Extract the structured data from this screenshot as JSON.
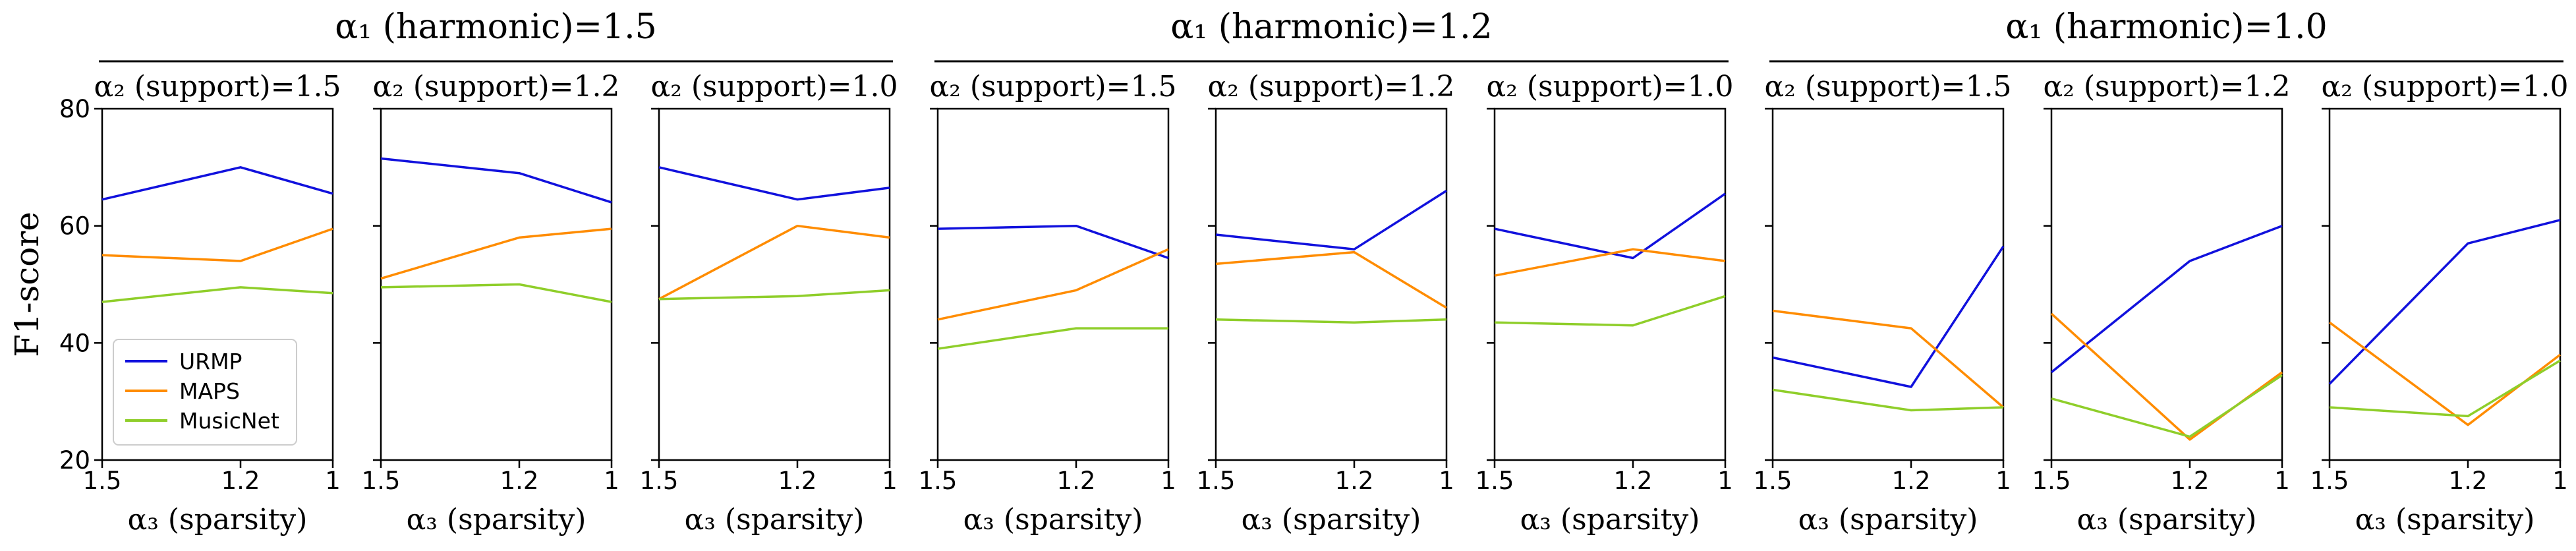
{
  "ylabel": "F1-score",
  "ylim": [
    20,
    80
  ],
  "yticks": [
    "20",
    "40",
    "60",
    "80"
  ],
  "xtick_labels": [
    "1.5",
    "1.2",
    "1"
  ],
  "x_values": [
    1.5,
    1.2,
    1.0
  ],
  "xlabel": "α₃ (sparsity)",
  "colors": {
    "URMP": "#1111dd",
    "MAPS": "#ff8c00",
    "MusicNet": "#8fce2a",
    "axis": "#000000"
  },
  "legend": [
    {
      "name": "URMP",
      "color": "#1111dd"
    },
    {
      "name": "MAPS",
      "color": "#ff8c00"
    },
    {
      "name": "MusicNet",
      "color": "#8fce2a"
    }
  ],
  "groups": [
    {
      "title": "α₁ (harmonic)=1.5"
    },
    {
      "title": "α₁ (harmonic)=1.2"
    },
    {
      "title": "α₁ (harmonic)=1.0"
    }
  ],
  "chart_data": [
    {
      "type": "line",
      "group_title": "α₁ (harmonic)=1.5",
      "title": "α₂ (support)=1.5",
      "xlabel": "α₃ (sparsity)",
      "ylabel": "F1-score",
      "ylim": [
        20,
        80
      ],
      "x": [
        1.5,
        1.2,
        1.0
      ],
      "series": [
        {
          "name": "URMP",
          "values": [
            64.5,
            70,
            65.5
          ]
        },
        {
          "name": "MAPS",
          "values": [
            55,
            54,
            59.5
          ]
        },
        {
          "name": "MusicNet",
          "values": [
            47,
            49.5,
            48.5
          ]
        }
      ]
    },
    {
      "type": "line",
      "group_title": "α₁ (harmonic)=1.5",
      "title": "α₂ (support)=1.2",
      "xlabel": "α₃ (sparsity)",
      "ylabel": "F1-score",
      "ylim": [
        20,
        80
      ],
      "x": [
        1.5,
        1.2,
        1.0
      ],
      "series": [
        {
          "name": "URMP",
          "values": [
            71.5,
            69,
            64
          ]
        },
        {
          "name": "MAPS",
          "values": [
            51,
            58,
            59.5
          ]
        },
        {
          "name": "MusicNet",
          "values": [
            49.5,
            50,
            47
          ]
        }
      ]
    },
    {
      "type": "line",
      "group_title": "α₁ (harmonic)=1.5",
      "title": "α₂ (support)=1.0",
      "xlabel": "α₃ (sparsity)",
      "ylabel": "F1-score",
      "ylim": [
        20,
        80
      ],
      "x": [
        1.5,
        1.2,
        1.0
      ],
      "series": [
        {
          "name": "URMP",
          "values": [
            70,
            64.5,
            66.5
          ]
        },
        {
          "name": "MAPS",
          "values": [
            47.5,
            60,
            58
          ]
        },
        {
          "name": "MusicNet",
          "values": [
            47.5,
            48,
            49
          ]
        }
      ]
    },
    {
      "type": "line",
      "group_title": "α₁ (harmonic)=1.2",
      "title": "α₂ (support)=1.5",
      "xlabel": "α₃ (sparsity)",
      "ylabel": "F1-score",
      "ylim": [
        20,
        80
      ],
      "x": [
        1.5,
        1.2,
        1.0
      ],
      "series": [
        {
          "name": "URMP",
          "values": [
            59.5,
            60,
            54.5
          ]
        },
        {
          "name": "MAPS",
          "values": [
            44,
            49,
            56
          ]
        },
        {
          "name": "MusicNet",
          "values": [
            39,
            42.5,
            42.5
          ]
        }
      ]
    },
    {
      "type": "line",
      "group_title": "α₁ (harmonic)=1.2",
      "title": "α₂ (support)=1.2",
      "xlabel": "α₃ (sparsity)",
      "ylabel": "F1-score",
      "ylim": [
        20,
        80
      ],
      "x": [
        1.5,
        1.2,
        1.0
      ],
      "series": [
        {
          "name": "URMP",
          "values": [
            58.5,
            56,
            66
          ]
        },
        {
          "name": "MAPS",
          "values": [
            53.5,
            55.5,
            46
          ]
        },
        {
          "name": "MusicNet",
          "values": [
            44,
            43.5,
            44
          ]
        }
      ]
    },
    {
      "type": "line",
      "group_title": "α₁ (harmonic)=1.2",
      "title": "α₂ (support)=1.0",
      "xlabel": "α₃ (sparsity)",
      "ylabel": "F1-score",
      "ylim": [
        20,
        80
      ],
      "x": [
        1.5,
        1.2,
        1.0
      ],
      "series": [
        {
          "name": "URMP",
          "values": [
            59.5,
            54.5,
            65.5
          ]
        },
        {
          "name": "MAPS",
          "values": [
            51.5,
            56,
            54
          ]
        },
        {
          "name": "MusicNet",
          "values": [
            43.5,
            43,
            48
          ]
        }
      ]
    },
    {
      "type": "line",
      "group_title": "α₁ (harmonic)=1.0",
      "title": "α₂ (support)=1.5",
      "xlabel": "α₃ (sparsity)",
      "ylabel": "F1-score",
      "ylim": [
        20,
        80
      ],
      "x": [
        1.5,
        1.2,
        1.0
      ],
      "series": [
        {
          "name": "URMP",
          "values": [
            37.5,
            32.5,
            56.5
          ]
        },
        {
          "name": "MAPS",
          "values": [
            45.5,
            42.5,
            29
          ]
        },
        {
          "name": "MusicNet",
          "values": [
            32,
            28.5,
            29
          ]
        }
      ]
    },
    {
      "type": "line",
      "group_title": "α₁ (harmonic)=1.0",
      "title": "α₂ (support)=1.2",
      "xlabel": "α₃ (sparsity)",
      "ylabel": "F1-score",
      "ylim": [
        20,
        80
      ],
      "x": [
        1.5,
        1.2,
        1.0
      ],
      "series": [
        {
          "name": "URMP",
          "values": [
            35,
            54,
            60
          ]
        },
        {
          "name": "MAPS",
          "values": [
            45,
            23.5,
            35
          ]
        },
        {
          "name": "MusicNet",
          "values": [
            30.5,
            24,
            34.5
          ]
        }
      ]
    },
    {
      "type": "line",
      "group_title": "α₁ (harmonic)=1.0",
      "title": "α₂ (support)=1.0",
      "xlabel": "α₃ (sparsity)",
      "ylabel": "F1-score",
      "ylim": [
        20,
        80
      ],
      "x": [
        1.5,
        1.2,
        1.0
      ],
      "series": [
        {
          "name": "URMP",
          "values": [
            33,
            57,
            61
          ]
        },
        {
          "name": "MAPS",
          "values": [
            43.5,
            26,
            38
          ]
        },
        {
          "name": "MusicNet",
          "values": [
            29,
            27.5,
            37
          ]
        }
      ]
    }
  ]
}
